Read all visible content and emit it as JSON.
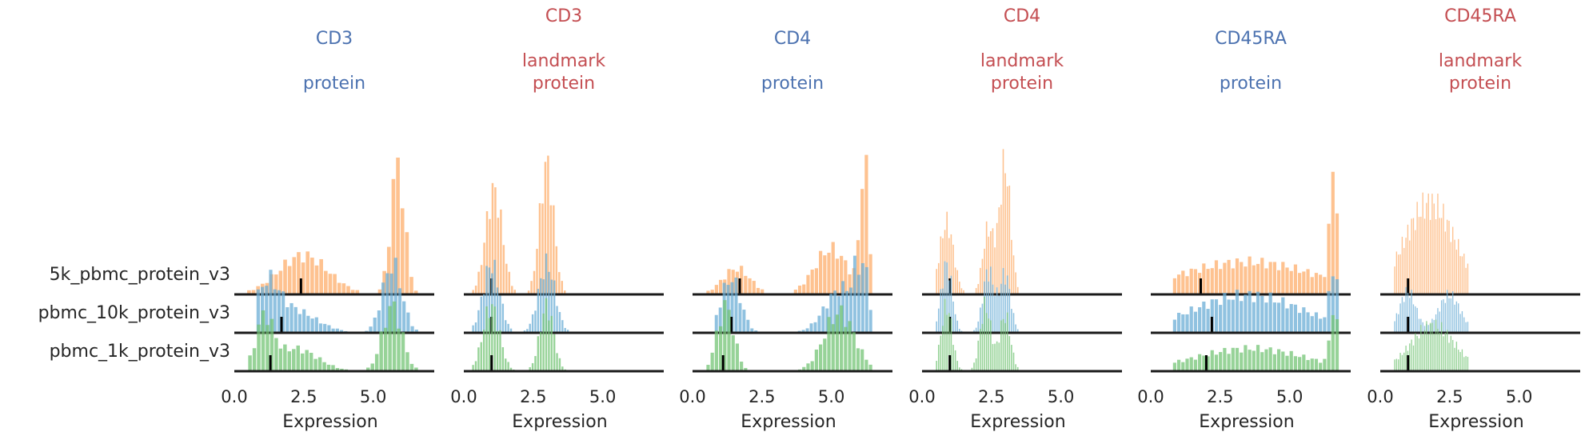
{
  "row_labels": [
    "5k_pbmc_protein_v3",
    "pbmc_10k_protein_v3",
    "pbmc_1k_protein_v3"
  ],
  "colors": {
    "series": [
      "#fdae6b",
      "#6baed6",
      "#74c476"
    ],
    "title_blue": "#4c72b0",
    "title_red": "#c44e52",
    "text": "#262626",
    "axis": "#1a1a1a",
    "median": "#000000"
  },
  "chart_data": [
    {
      "type": "histogram",
      "title_lines": [
        "CD3",
        "",
        "protein"
      ],
      "title_color": "blue",
      "xlabel": "Expression",
      "xticks": [
        "0.0",
        "2.5",
        "5.0"
      ],
      "xlim": [
        0,
        7.2
      ],
      "series": [
        {
          "name": "5k_pbmc_protein_v3",
          "range": [
            0.3,
            6.8
          ],
          "peaks": [
            [
              2.5,
              0.9,
              0.3
            ],
            [
              5.9,
              0.25,
              1.0
            ]
          ],
          "median": 2.4
        },
        {
          "name": "pbmc_10k_protein_v3",
          "range": [
            0.8,
            6.8
          ],
          "peaks": [
            [
              1.2,
              0.4,
              0.55
            ],
            [
              2.0,
              0.9,
              0.35
            ],
            [
              5.7,
              0.35,
              1.0
            ]
          ],
          "median": 1.7
        },
        {
          "name": "pbmc_1k_protein_v3",
          "range": [
            0.5,
            6.8
          ],
          "peaks": [
            [
              1.1,
              0.3,
              0.75
            ],
            [
              2.2,
              0.8,
              0.35
            ],
            [
              5.7,
              0.35,
              1.0
            ]
          ],
          "median": 1.3
        }
      ]
    },
    {
      "type": "histogram",
      "title_lines": [
        "CD3",
        "landmark",
        "protein"
      ],
      "title_color": "red",
      "xlabel": "Expression",
      "xticks": [
        "0.0",
        "2.5",
        "5.0"
      ],
      "xlim": [
        0,
        7.2
      ],
      "series": [
        {
          "name": "5k_pbmc_protein_v3",
          "range": [
            0.2,
            4.2
          ],
          "peaks": [
            [
              1.1,
              0.3,
              0.8
            ],
            [
              3.0,
              0.25,
              1.0
            ]
          ],
          "median": 1.0
        },
        {
          "name": "pbmc_10k_protein_v3",
          "range": [
            0.3,
            4.2
          ],
          "peaks": [
            [
              1.0,
              0.3,
              1.0
            ],
            [
              3.0,
              0.3,
              1.0
            ]
          ],
          "median": 1.0
        },
        {
          "name": "pbmc_1k_protein_v3",
          "range": [
            0.3,
            4.2
          ],
          "peaks": [
            [
              1.0,
              0.3,
              1.0
            ],
            [
              3.0,
              0.25,
              1.0
            ]
          ],
          "median": 1.0
        }
      ]
    },
    {
      "type": "histogram",
      "title_lines": [
        "CD4",
        "",
        "protein"
      ],
      "title_color": "blue",
      "xlabel": "Expression",
      "xticks": [
        "0.0",
        "2.5",
        "5.0"
      ],
      "xlim": [
        0,
        7.2
      ],
      "series": [
        {
          "name": "5k_pbmc_protein_v3",
          "range": [
            0.5,
            6.5
          ],
          "peaks": [
            [
              1.6,
              0.5,
              0.2
            ],
            [
              5.0,
              0.6,
              0.35
            ],
            [
              6.2,
              0.15,
              1.0
            ]
          ],
          "median": 1.7
        },
        {
          "name": "pbmc_10k_protein_v3",
          "range": [
            0.8,
            6.5
          ],
          "peaks": [
            [
              1.4,
              0.35,
              0.8
            ],
            [
              5.4,
              0.6,
              0.65
            ],
            [
              6.1,
              0.2,
              1.0
            ]
          ],
          "median": 1.4
        },
        {
          "name": "pbmc_1k_protein_v3",
          "range": [
            0.5,
            6.5
          ],
          "peaks": [
            [
              1.2,
              0.3,
              1.0
            ],
            [
              5.3,
              0.55,
              0.9
            ]
          ],
          "median": 1.1
        }
      ]
    },
    {
      "type": "histogram",
      "title_lines": [
        "CD4",
        "landmark",
        "protein"
      ],
      "title_color": "red",
      "xlabel": "Expression",
      "xticks": [
        "0.0",
        "2.5",
        "5.0"
      ],
      "xlim": [
        0,
        7.2
      ],
      "series": [
        {
          "name": "5k_pbmc_protein_v3",
          "range": [
            0.5,
            3.5
          ],
          "peaks": [
            [
              0.9,
              0.25,
              0.55
            ],
            [
              2.4,
              0.2,
              0.5
            ],
            [
              3.0,
              0.2,
              1.0
            ]
          ],
          "median": 1.0
        },
        {
          "name": "pbmc_10k_protein_v3",
          "range": [
            0.5,
            3.5
          ],
          "peaks": [
            [
              0.9,
              0.2,
              1.0
            ],
            [
              2.4,
              0.2,
              0.9
            ],
            [
              3.0,
              0.2,
              0.85
            ]
          ],
          "median": 1.0
        },
        {
          "name": "pbmc_1k_protein_v3",
          "range": [
            0.5,
            3.5
          ],
          "peaks": [
            [
              0.9,
              0.2,
              1.0
            ],
            [
              2.3,
              0.2,
              1.0
            ],
            [
              3.0,
              0.2,
              0.85
            ]
          ],
          "median": 1.0
        }
      ]
    },
    {
      "type": "histogram",
      "title_lines": [
        "CD45RA",
        "",
        "protein"
      ],
      "title_color": "blue",
      "xlabel": "Expression",
      "xticks": [
        "0.0",
        "2.5",
        "5.0"
      ],
      "xlim": [
        0,
        7.2
      ],
      "series": [
        {
          "name": "5k_pbmc_protein_v3",
          "range": [
            0.8,
            6.8
          ],
          "peaks": [
            [
              3.5,
              2.5,
              0.25
            ],
            [
              6.6,
              0.12,
              1.0
            ]
          ],
          "median": 1.8
        },
        {
          "name": "pbmc_10k_protein_v3",
          "range": [
            0.8,
            6.8
          ],
          "peaks": [
            [
              3.5,
              2.0,
              0.55
            ],
            [
              6.6,
              0.12,
              1.0
            ]
          ],
          "median": 2.2
        },
        {
          "name": "pbmc_1k_protein_v3",
          "range": [
            0.8,
            6.8
          ],
          "peaks": [
            [
              3.6,
              2.0,
              0.35
            ],
            [
              6.6,
              0.12,
              1.0
            ]
          ],
          "median": 2.0
        }
      ]
    },
    {
      "type": "histogram",
      "title_lines": [
        "CD45RA",
        "landmark",
        "protein"
      ],
      "title_color": "red",
      "xlabel": "Expression",
      "xticks": [
        "0.0",
        "2.5",
        "5.0"
      ],
      "xlim": [
        0,
        7.2
      ],
      "series": [
        {
          "name": "5k_pbmc_protein_v3",
          "range": [
            0.5,
            3.2
          ],
          "peaks": [
            [
              1.8,
              0.9,
              0.7
            ]
          ],
          "median": 1.0
        },
        {
          "name": "pbmc_10k_protein_v3",
          "range": [
            0.5,
            3.2
          ],
          "peaks": [
            [
              1.0,
              0.3,
              0.6
            ],
            [
              2.5,
              0.4,
              0.55
            ]
          ],
          "median": 1.0
        },
        {
          "name": "pbmc_1k_protein_v3",
          "range": [
            0.5,
            3.2
          ],
          "peaks": [
            [
              1.9,
              0.8,
              0.7
            ]
          ],
          "median": 1.0
        }
      ]
    }
  ]
}
